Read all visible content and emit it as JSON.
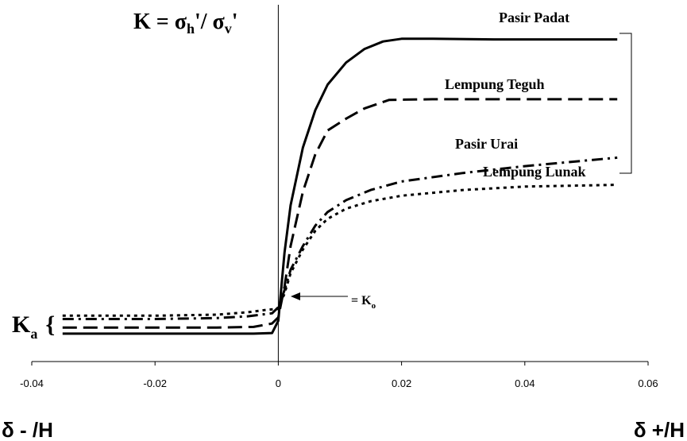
{
  "chart_data": {
    "type": "line",
    "xlim": [
      -0.04,
      0.06
    ],
    "x_ticks": [
      "-0.04",
      "-0.02",
      "0",
      "0.02",
      "0.04",
      "0.06"
    ],
    "ylabel": "K = σ_h'/ σ_v'",
    "ylabel_parts": {
      "main": "K = σ",
      "sub_h": "h",
      "mid": "'/ σ",
      "sub_v": "v",
      "end": "'"
    },
    "xlabel_left": "δ - /H",
    "xlabel_right": "δ +/H",
    "ka_label": "K",
    "ka_sub": "a",
    "ka_brace": "{",
    "ko_label": "= K",
    "ko_sub": "o",
    "series": [
      {
        "name": "Pasir Padat",
        "dash": "solid",
        "points": [
          [
            -0.035,
            0.82
          ],
          [
            -0.02,
            0.82
          ],
          [
            -0.01,
            0.82
          ],
          [
            -0.004,
            0.82
          ],
          [
            -0.001,
            0.84
          ],
          [
            0,
            1.2
          ],
          [
            0.0005,
            2.2
          ],
          [
            0.001,
            3.2
          ],
          [
            0.002,
            4.6
          ],
          [
            0.004,
            6.3
          ],
          [
            0.006,
            7.4
          ],
          [
            0.008,
            8.15
          ],
          [
            0.011,
            8.8
          ],
          [
            0.014,
            9.2
          ],
          [
            0.017,
            9.42
          ],
          [
            0.02,
            9.5
          ],
          [
            0.025,
            9.5
          ],
          [
            0.035,
            9.48
          ],
          [
            0.055,
            9.48
          ]
        ]
      },
      {
        "name": "Lempung Teguh",
        "dash": "long",
        "points": [
          [
            -0.035,
            1.0
          ],
          [
            -0.02,
            1.0
          ],
          [
            -0.01,
            1.0
          ],
          [
            -0.004,
            1.02
          ],
          [
            -0.001,
            1.12
          ],
          [
            0,
            1.3
          ],
          [
            0.001,
            2.2
          ],
          [
            0.002,
            3.4
          ],
          [
            0.004,
            5.0
          ],
          [
            0.006,
            6.1
          ],
          [
            0.008,
            6.8
          ],
          [
            0.011,
            7.15
          ],
          [
            0.014,
            7.45
          ],
          [
            0.018,
            7.7
          ],
          [
            0.025,
            7.72
          ],
          [
            0.055,
            7.72
          ]
        ]
      },
      {
        "name": "Pasir Urai",
        "dash": "dashdot",
        "points": [
          [
            -0.035,
            1.25
          ],
          [
            -0.02,
            1.25
          ],
          [
            -0.01,
            1.28
          ],
          [
            -0.005,
            1.33
          ],
          [
            -0.001,
            1.42
          ],
          [
            0,
            1.6
          ],
          [
            0.001,
            2.1
          ],
          [
            0.002,
            2.7
          ],
          [
            0.004,
            3.4
          ],
          [
            0.006,
            4.0
          ],
          [
            0.008,
            4.4
          ],
          [
            0.011,
            4.75
          ],
          [
            0.015,
            5.05
          ],
          [
            0.02,
            5.3
          ],
          [
            0.03,
            5.55
          ],
          [
            0.04,
            5.75
          ],
          [
            0.055,
            6.0
          ]
        ]
      },
      {
        "name": "Lempung Lunak",
        "dash": "dotted",
        "points": [
          [
            -0.035,
            1.35
          ],
          [
            -0.02,
            1.35
          ],
          [
            -0.01,
            1.38
          ],
          [
            -0.005,
            1.45
          ],
          [
            -0.002,
            1.52
          ],
          [
            0,
            1.55
          ],
          [
            0.001,
            2.0
          ],
          [
            0.002,
            2.6
          ],
          [
            0.004,
            3.3
          ],
          [
            0.006,
            3.85
          ],
          [
            0.008,
            4.2
          ],
          [
            0.011,
            4.5
          ],
          [
            0.015,
            4.72
          ],
          [
            0.02,
            4.88
          ],
          [
            0.03,
            5.05
          ],
          [
            0.04,
            5.15
          ],
          [
            0.055,
            5.2
          ]
        ]
      }
    ],
    "ylim": [
      0,
      10.5
    ],
    "k0": 1.5,
    "grid": false,
    "legend": "inline labels"
  }
}
